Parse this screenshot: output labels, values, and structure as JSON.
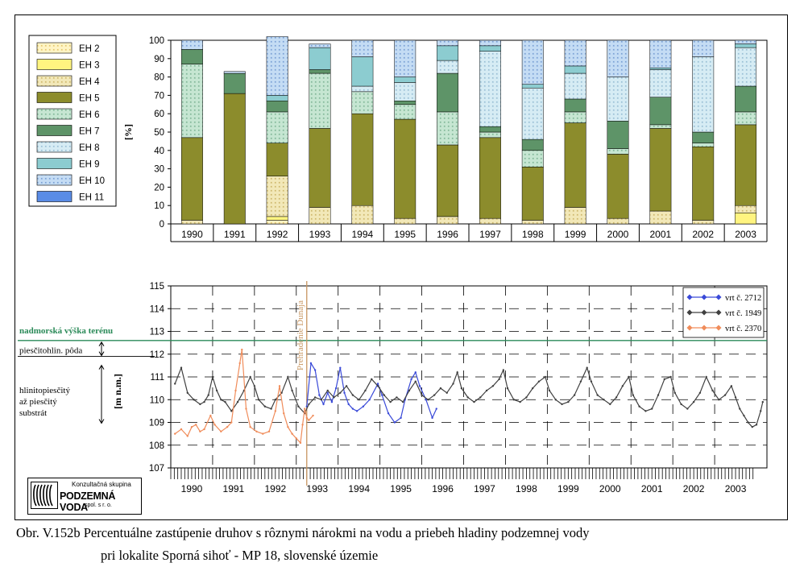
{
  "caption": {
    "line1": "Obr. V.152b Percentuálne zastúpenie druhov s rôznymi nárokmi na vodu a priebeh hladiny podzemnej vody",
    "line2": "pri lokalite Sporná sihoť - MP 18, slovenské územie"
  },
  "logo": {
    "line1": "Konzultačná skupina",
    "line2": "PODZEMNÁ VODA",
    "line3": "spol. s r. o."
  },
  "colors": {
    "EH 2": "#fff4c4",
    "EH 3": "#fff480",
    "EH 4": "#f2e8b8",
    "EH 5": "#8c8c2c",
    "EH 6": "#c6e6d2",
    "EH 7": "#5e9468",
    "EH 8": "#d6ecf4",
    "EH 9": "#8cccd0",
    "EH 10": "#c4dcf4",
    "EH 11": "#5a8ce6",
    "vrt_2712": "#3a4ad8",
    "vrt_1949": "#404040",
    "vrt_2370": "#f08c5a",
    "terrain_line": "#2a8a58",
    "dam_line": "#c89660"
  },
  "chart_data": [
    {
      "type": "bar",
      "stacked": true,
      "ylabel": "[%]",
      "ylim": [
        0,
        100
      ],
      "yticks": [
        0,
        10,
        20,
        30,
        40,
        50,
        60,
        70,
        80,
        90,
        100
      ],
      "legend_position": "left",
      "categories": [
        "1990",
        "1991",
        "1992",
        "1993",
        "1994",
        "1995",
        "1996",
        "1997",
        "1998",
        "1999",
        "2000",
        "2001",
        "2002",
        "2003"
      ],
      "series": [
        {
          "name": "EH 2",
          "values": [
            0,
            0,
            2,
            0,
            0,
            0,
            0,
            0,
            0,
            0,
            0,
            0,
            0,
            0
          ]
        },
        {
          "name": "EH 3",
          "values": [
            0,
            0,
            2,
            0,
            0,
            0,
            0,
            0,
            0,
            0,
            0,
            0,
            0,
            6
          ]
        },
        {
          "name": "EH 4",
          "values": [
            2,
            0,
            22,
            9,
            10,
            3,
            4,
            3,
            2,
            9,
            3,
            7,
            2,
            4
          ]
        },
        {
          "name": "EH 5",
          "values": [
            45,
            71,
            18,
            43,
            50,
            54,
            39,
            44,
            29,
            46,
            35,
            45,
            40,
            44
          ]
        },
        {
          "name": "EH 6",
          "values": [
            40,
            0,
            17,
            30,
            12,
            8,
            18,
            3,
            9,
            6,
            3,
            2,
            2,
            7
          ]
        },
        {
          "name": "EH 7",
          "values": [
            8,
            11,
            6,
            2,
            0,
            2,
            21,
            3,
            6,
            7,
            15,
            15,
            6,
            14
          ]
        },
        {
          "name": "EH 8",
          "values": [
            0,
            0,
            0,
            0,
            3,
            10,
            7,
            41,
            28,
            14,
            24,
            15,
            41,
            21
          ]
        },
        {
          "name": "EH 9",
          "values": [
            0,
            0,
            3,
            12,
            16,
            3,
            8,
            3,
            2,
            4,
            0,
            1,
            0,
            2
          ]
        },
        {
          "name": "EH 10",
          "values": [
            5,
            1,
            32,
            2,
            9,
            20,
            3,
            3,
            24,
            14,
            20,
            15,
            9,
            2
          ]
        },
        {
          "name": "EH 11",
          "values": [
            0,
            0,
            0,
            0,
            0,
            0,
            0,
            0,
            0,
            0,
            0,
            0,
            0,
            0
          ]
        }
      ]
    },
    {
      "type": "line",
      "ylabel": "[m n.m.]",
      "ylim": [
        107,
        115
      ],
      "yticks": [
        107,
        108,
        109,
        110,
        111,
        112,
        113,
        114,
        115
      ],
      "xlim": [
        1989.5,
        2003.75
      ],
      "xtick_labels": [
        "1990",
        "1991",
        "1992",
        "1993",
        "1994",
        "1995",
        "1996",
        "1997",
        "1998",
        "1999",
        "2000",
        "2001",
        "2002",
        "2003"
      ],
      "legend_position": "top-right",
      "terrain_level": 112.6,
      "terrain_label": "nadmorská výška terénu",
      "soil_label": "piesčitohlin. pôda",
      "substrate_label": "hlinitopiesčitý\naž piesčitý\nsubstrát",
      "dam_x": 1992.75,
      "dam_label": "Prehradenie Dunaja",
      "series": [
        {
          "name": "vrt č. 2712",
          "color_key": "vrt_2712",
          "points": [
            [
              1992.75,
              109.7
            ],
            [
              1992.85,
              111.6
            ],
            [
              1992.95,
              111.3
            ],
            [
              1993.05,
              110.2
            ],
            [
              1993.15,
              109.8
            ],
            [
              1993.25,
              110.3
            ],
            [
              1993.35,
              109.9
            ],
            [
              1993.45,
              110.5
            ],
            [
              1993.55,
              111.4
            ],
            [
              1993.65,
              110.3
            ],
            [
              1993.75,
              109.8
            ],
            [
              1993.85,
              109.6
            ],
            [
              1993.95,
              109.5
            ],
            [
              1994.1,
              109.7
            ],
            [
              1994.25,
              110.0
            ],
            [
              1994.45,
              110.7
            ],
            [
              1994.55,
              110.2
            ],
            [
              1994.7,
              109.4
            ],
            [
              1994.85,
              109.0
            ],
            [
              1995.0,
              109.2
            ],
            [
              1995.1,
              110.0
            ],
            [
              1995.25,
              110.9
            ],
            [
              1995.35,
              111.2
            ],
            [
              1995.45,
              110.6
            ],
            [
              1995.6,
              110.0
            ],
            [
              1995.75,
              109.2
            ],
            [
              1995.85,
              109.6
            ]
          ]
        },
        {
          "name": "vrt č. 1949",
          "color_key": "vrt_1949",
          "points": [
            [
              1989.6,
              110.7
            ],
            [
              1989.75,
              111.4
            ],
            [
              1989.9,
              110.3
            ],
            [
              1990.05,
              110.0
            ],
            [
              1990.2,
              109.8
            ],
            [
              1990.3,
              109.9
            ],
            [
              1990.4,
              110.2
            ],
            [
              1990.5,
              111.0
            ],
            [
              1990.6,
              110.4
            ],
            [
              1990.7,
              110.0
            ],
            [
              1990.8,
              109.9
            ],
            [
              1990.95,
              109.5
            ],
            [
              1991.1,
              109.9
            ],
            [
              1991.25,
              110.4
            ],
            [
              1991.4,
              111.0
            ],
            [
              1991.5,
              110.6
            ],
            [
              1991.6,
              110.0
            ],
            [
              1991.75,
              109.7
            ],
            [
              1991.9,
              109.6
            ],
            [
              1992.0,
              110.0
            ],
            [
              1992.15,
              110.3
            ],
            [
              1992.3,
              111.0
            ],
            [
              1992.4,
              110.4
            ],
            [
              1992.55,
              109.7
            ],
            [
              1992.7,
              109.4
            ],
            [
              1992.8,
              109.8
            ],
            [
              1992.95,
              110.1
            ],
            [
              1993.1,
              110.0
            ],
            [
              1993.25,
              110.4
            ],
            [
              1993.4,
              110.1
            ],
            [
              1993.55,
              110.3
            ],
            [
              1993.7,
              110.6
            ],
            [
              1993.85,
              110.2
            ],
            [
              1994.0,
              110.0
            ],
            [
              1994.15,
              110.4
            ],
            [
              1994.3,
              110.9
            ],
            [
              1994.45,
              110.6
            ],
            [
              1994.6,
              110.2
            ],
            [
              1994.75,
              109.9
            ],
            [
              1994.9,
              110.1
            ],
            [
              1995.05,
              109.9
            ],
            [
              1995.2,
              110.4
            ],
            [
              1995.35,
              110.8
            ],
            [
              1995.5,
              110.2
            ],
            [
              1995.65,
              110.0
            ],
            [
              1995.8,
              110.2
            ],
            [
              1995.95,
              110.5
            ],
            [
              1996.1,
              110.3
            ],
            [
              1996.25,
              110.7
            ],
            [
              1996.35,
              111.2
            ],
            [
              1996.45,
              110.5
            ],
            [
              1996.6,
              110.1
            ],
            [
              1996.75,
              109.9
            ],
            [
              1996.9,
              110.1
            ],
            [
              1997.05,
              110.4
            ],
            [
              1997.2,
              110.6
            ],
            [
              1997.35,
              110.9
            ],
            [
              1997.45,
              111.3
            ],
            [
              1997.55,
              110.5
            ],
            [
              1997.7,
              110.0
            ],
            [
              1997.85,
              109.9
            ],
            [
              1998.0,
              110.1
            ],
            [
              1998.15,
              110.5
            ],
            [
              1998.3,
              110.8
            ],
            [
              1998.45,
              111.0
            ],
            [
              1998.55,
              110.4
            ],
            [
              1998.7,
              110.0
            ],
            [
              1998.85,
              109.8
            ],
            [
              1999.0,
              109.9
            ],
            [
              1999.15,
              110.2
            ],
            [
              1999.3,
              110.8
            ],
            [
              1999.45,
              111.4
            ],
            [
              1999.55,
              110.8
            ],
            [
              1999.7,
              110.2
            ],
            [
              1999.85,
              110.0
            ],
            [
              2000.0,
              109.8
            ],
            [
              2000.15,
              110.1
            ],
            [
              2000.3,
              110.6
            ],
            [
              2000.45,
              111.0
            ],
            [
              2000.55,
              110.2
            ],
            [
              2000.7,
              109.7
            ],
            [
              2000.85,
              109.5
            ],
            [
              2001.0,
              109.6
            ],
            [
              2001.15,
              110.2
            ],
            [
              2001.3,
              110.9
            ],
            [
              2001.45,
              111.0
            ],
            [
              2001.55,
              110.3
            ],
            [
              2001.7,
              109.8
            ],
            [
              2001.85,
              109.6
            ],
            [
              2002.0,
              109.9
            ],
            [
              2002.15,
              110.3
            ],
            [
              2002.3,
              111.0
            ],
            [
              2002.45,
              110.4
            ],
            [
              2002.6,
              110.0
            ],
            [
              2002.75,
              110.2
            ],
            [
              2002.9,
              110.6
            ],
            [
              2003.0,
              110.1
            ],
            [
              2003.1,
              109.6
            ],
            [
              2003.2,
              109.3
            ],
            [
              2003.3,
              109.0
            ],
            [
              2003.4,
              108.8
            ],
            [
              2003.5,
              108.9
            ],
            [
              2003.6,
              109.5
            ],
            [
              2003.65,
              109.9
            ]
          ]
        },
        {
          "name": "vrt č. 2370",
          "color_key": "vrt_2370",
          "points": [
            [
              1989.6,
              108.5
            ],
            [
              1989.75,
              108.7
            ],
            [
              1989.9,
              108.4
            ],
            [
              1990.0,
              108.8
            ],
            [
              1990.1,
              108.9
            ],
            [
              1990.2,
              108.6
            ],
            [
              1990.3,
              108.7
            ],
            [
              1990.45,
              109.3
            ],
            [
              1990.55,
              108.9
            ],
            [
              1990.7,
              108.6
            ],
            [
              1990.85,
              108.8
            ],
            [
              1990.95,
              109.0
            ],
            [
              1991.05,
              110.4
            ],
            [
              1991.15,
              111.6
            ],
            [
              1991.2,
              112.2
            ],
            [
              1991.3,
              109.6
            ],
            [
              1991.4,
              108.8
            ],
            [
              1991.55,
              108.6
            ],
            [
              1991.7,
              108.5
            ],
            [
              1991.85,
              108.6
            ],
            [
              1992.0,
              109.5
            ],
            [
              1992.1,
              110.6
            ],
            [
              1992.2,
              109.4
            ],
            [
              1992.3,
              108.8
            ],
            [
              1992.4,
              108.5
            ],
            [
              1992.5,
              108.3
            ],
            [
              1992.6,
              108.1
            ],
            [
              1992.65,
              108.9
            ],
            [
              1992.7,
              109.6
            ],
            [
              1992.75,
              109.2
            ],
            [
              1992.8,
              109.1
            ],
            [
              1992.9,
              109.3
            ]
          ]
        }
      ]
    }
  ]
}
